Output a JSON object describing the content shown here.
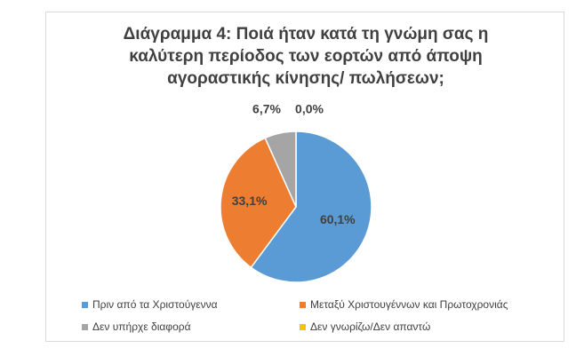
{
  "chart_data": {
    "type": "pie",
    "title_lines": [
      "Διάγραμμα 4: Ποιά ήταν κατά τη γνώμη σας η",
      "καλύτερη περίοδος των εορτών από άποψη",
      "αγοραστικής κίνησης/ πωλήσεων;"
    ],
    "legend_position": "bottom",
    "slices": [
      {
        "label": "Πριν από τα Χριστούγεννα",
        "value": 60.1,
        "display": "60,1%",
        "color": "#5b9bd5"
      },
      {
        "label": "Μεταξύ Χριστουγέννων και Πρωτοχρονιάς",
        "value": 33.1,
        "display": "33,1%",
        "color": "#ed7d31"
      },
      {
        "label": "Δεν υπήρχε διαφορά",
        "value": 6.7,
        "display": "6,7%",
        "color": "#a5a5a5"
      },
      {
        "label": "Δεν γνωρίζω/Δεν απαντώ",
        "value": 0.0,
        "display": "0,0%",
        "color": "#ffc000"
      }
    ]
  }
}
